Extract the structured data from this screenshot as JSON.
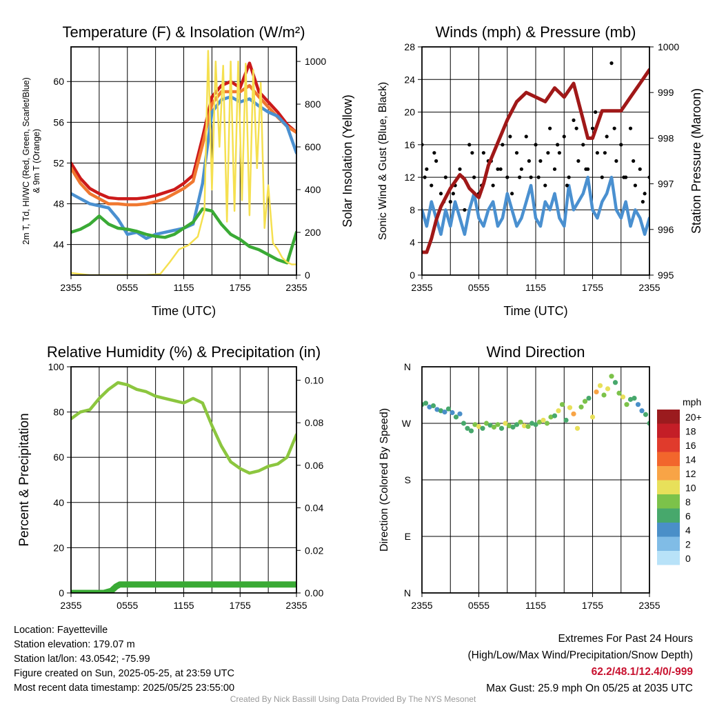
{
  "footer": {
    "location": "Location: Fayetteville",
    "elevation": "Station elevation: 179.07 m",
    "latlon": "Station lat/lon: 43.0542; -75.99",
    "created": "Figure created on Sun, 2025-05-25, at 23:59 UTC",
    "recent": "Most recent data timestamp: 2025/05/25 23:55:00",
    "extremes_title": "Extremes For Past 24 Hours",
    "extremes_sub": "(High/Low/Max Wind/Precipitation/Snow Depth)",
    "extremes_values": "62.2/48.1/12.4/0/-999",
    "max_gust": "Max Gust: 25.9 mph On 05/25 at 2035 UTC",
    "credit": "Created By Nick Bassill Using Data Provided By The NYS Mesonet"
  },
  "chart_data": [
    {
      "type": "line",
      "title": "Temperature (F) & Insolation (W/m²)",
      "xlabel": "Time (UTC)",
      "ylabel": [
        "2m T, Td, HI/WC (Red, Green, Scarlet/Blue)",
        "& 9m T (Orange)"
      ],
      "ylabel_right": "Solar Insolation (Yellow)",
      "x_tick_labels": [
        "2355",
        "0555",
        "1155",
        "1755",
        "2355"
      ],
      "x_hours": [
        0,
        1,
        2,
        3,
        4,
        5,
        6,
        7,
        8,
        9,
        10,
        11,
        12,
        13,
        14,
        15,
        16,
        17,
        18,
        19,
        20,
        21,
        22,
        23,
        24
      ],
      "ylim": [
        41,
        63.4
      ],
      "yticks": [
        44,
        48,
        52,
        56,
        60
      ],
      "ylim_right": [
        0,
        1068
      ],
      "yticks_right": [
        0,
        200,
        400,
        600,
        800,
        1000
      ],
      "series": [
        {
          "name": "2m T",
          "color": "#cc1a1a",
          "axis": "left",
          "values": [
            52,
            50.5,
            49.5,
            49,
            48.6,
            48.5,
            48.5,
            48.5,
            48.6,
            48.8,
            49.1,
            49.4,
            50,
            50.8,
            54.5,
            58.5,
            59.6,
            60,
            59.4,
            61.8,
            59,
            58,
            57,
            55.8,
            55
          ]
        },
        {
          "name": "9m T",
          "color": "#f07830",
          "axis": "left",
          "values": [
            51.5,
            50,
            49,
            48.5,
            48,
            48,
            47.9,
            47.9,
            48,
            48.2,
            48.5,
            49,
            49.5,
            50.2,
            53.8,
            57.8,
            59,
            59,
            59,
            59.6,
            58.5,
            57.5,
            56.5,
            55.6,
            55
          ]
        },
        {
          "name": "Dewpoint",
          "color": "#4a90d0",
          "axis": "left",
          "values": [
            49,
            48.5,
            48,
            47.8,
            47.6,
            46.5,
            45,
            45.2,
            44.6,
            45,
            45.2,
            45.4,
            45.6,
            46,
            50,
            57,
            58.2,
            58.5,
            58,
            58.3,
            57.6,
            57,
            56.6,
            55.6,
            53
          ]
        },
        {
          "name": "HI/WC",
          "color": "#3aaa35",
          "axis": "left",
          "values": [
            45.2,
            45.5,
            46,
            46.8,
            46,
            45.6,
            45.5,
            45.3,
            45,
            44.8,
            44.7,
            45,
            45.6,
            46.2,
            47.5,
            47.3,
            46,
            45,
            44.5,
            43.8,
            43.5,
            43,
            42.5,
            42.2,
            45.2
          ]
        },
        {
          "name": "Insolation",
          "color": "#f5e050",
          "axis": "right",
          "x_hours": [
            0,
            2,
            4,
            6,
            8,
            9.5,
            10.5,
            11.5,
            12.5,
            13.5,
            14.2,
            14.6,
            15,
            15.4,
            15.8,
            16.2,
            16.6,
            17,
            17.4,
            17.8,
            18.2,
            18.6,
            19,
            19.4,
            19.8,
            20.2,
            20.6,
            21,
            21.5,
            22,
            22.5,
            23,
            23.5,
            24
          ],
          "values": [
            10,
            0,
            0,
            0,
            0,
            5,
            60,
            120,
            140,
            180,
            300,
            1050,
            400,
            1000,
            600,
            980,
            250,
            1000,
            300,
            1000,
            350,
            990,
            280,
            960,
            500,
            900,
            220,
            420,
            150,
            120,
            80,
            60,
            50,
            50
          ]
        }
      ]
    },
    {
      "type": "line",
      "title": "Winds (mph) & Pressure (mb)",
      "xlabel": "Time (UTC)",
      "ylabel": "Sonic Wind & Gust (Blue, Black)",
      "ylabel_right": "Station Pressure (Maroon)",
      "x_tick_labels": [
        "2355",
        "0555",
        "1155",
        "1755",
        "2355"
      ],
      "ylim": [
        0,
        28
      ],
      "yticks": [
        0,
        4,
        8,
        12,
        16,
        20,
        24,
        28
      ],
      "ylim_right": [
        995,
        1000
      ],
      "yticks_right": [
        995,
        996,
        997,
        998,
        999,
        1000
      ],
      "series": [
        {
          "name": "Sonic Wind",
          "color": "#4a90d0",
          "axis": "left",
          "x_hours": [
            0,
            0.5,
            1,
            1.5,
            2,
            2.5,
            3,
            3.5,
            4,
            4.5,
            5,
            5.5,
            6,
            6.5,
            7,
            7.5,
            8,
            8.5,
            9,
            9.5,
            10,
            10.5,
            11,
            11.5,
            12,
            12.5,
            13,
            13.5,
            14,
            14.5,
            15,
            15.5,
            16,
            16.5,
            17,
            17.5,
            18,
            18.5,
            19,
            19.5,
            20,
            20.5,
            21,
            21.5,
            22,
            22.5,
            23,
            23.5,
            24
          ],
          "values": [
            8,
            6,
            9,
            7,
            5,
            8,
            6,
            9,
            7,
            5,
            8,
            10,
            7,
            6,
            8,
            9,
            6,
            7,
            10,
            8,
            6,
            7,
            9,
            11,
            7,
            6,
            9,
            8,
            10,
            7,
            6,
            11,
            8,
            9,
            10,
            12,
            8,
            7,
            9,
            10,
            12,
            8,
            7,
            9,
            6,
            8,
            7,
            5,
            7
          ]
        },
        {
          "name": "Gust",
          "color": "#000000",
          "axis": "left",
          "style": "dots",
          "x_hours": [
            0,
            0.5,
            1,
            1.5,
            2,
            2.5,
            3,
            3.5,
            4,
            4.5,
            5,
            5.5,
            6,
            6.5,
            7,
            7.5,
            8,
            8.5,
            9,
            9.5,
            10,
            10.5,
            11,
            11.5,
            12,
            12.5,
            13,
            13.5,
            14,
            14.5,
            15,
            15.5,
            16,
            16.5,
            17,
            17.5,
            18,
            18.5,
            19,
            19.5,
            20,
            20.5,
            21,
            21.5,
            22,
            22.5,
            23,
            23.5,
            24,
            0.3,
            1.3,
            2.3,
            3.3,
            4.3,
            5.3,
            6.3,
            7.3,
            8.3,
            9.3,
            10.3,
            11.3,
            12.3,
            13.3,
            14.3,
            15.3,
            16.3,
            17.3,
            18.3,
            19.3,
            20.3,
            21.3,
            22.3,
            23.3
          ],
          "values": [
            16,
            13,
            11,
            14,
            10,
            12,
            9,
            11,
            13,
            8,
            16,
            12,
            10,
            15,
            14,
            11,
            13,
            16,
            12,
            10,
            15,
            13,
            17,
            12,
            16,
            14,
            11,
            18,
            13,
            15,
            17,
            12,
            19,
            14,
            16,
            13,
            18,
            15,
            12,
            17,
            26,
            14,
            16,
            12,
            18,
            11,
            13,
            10,
            12,
            12,
            15,
            9,
            10,
            12,
            15,
            11,
            14,
            13,
            17,
            12,
            14,
            12,
            15,
            16,
            11,
            18,
            13,
            20,
            15,
            18,
            12,
            14,
            9
          ]
        },
        {
          "name": "Pressure",
          "color": "#a01818",
          "axis": "right",
          "x_hours": [
            0,
            0.5,
            1,
            1.5,
            2,
            3,
            4,
            4.5,
            5,
            5.5,
            6,
            6.5,
            7,
            8,
            9,
            9.5,
            10,
            11,
            12,
            13,
            14,
            15,
            16,
            17,
            17.5,
            18,
            18.5,
            19,
            20,
            21,
            22,
            23,
            24
          ],
          "values": [
            995.5,
            995.5,
            995.8,
            996.2,
            996.5,
            996.9,
            997.2,
            997.1,
            996.9,
            996.8,
            996.7,
            997,
            997.4,
            997.9,
            998.4,
            998.6,
            998.8,
            999,
            998.9,
            998.8,
            999.1,
            998.9,
            999.2,
            998.4,
            998,
            998,
            998.3,
            998.6,
            998.6,
            998.6,
            998.9,
            999.2,
            999.5
          ]
        }
      ]
    },
    {
      "type": "line",
      "title": "Relative Humidity (%) & Precipitation (in)",
      "xlabel": "",
      "ylabel": "Percent & Precipitation",
      "x_tick_labels": [
        "2355",
        "0555",
        "1155",
        "1755",
        "2355"
      ],
      "ylim": [
        0,
        100
      ],
      "yticks": [
        0,
        20,
        40,
        60,
        80,
        100
      ],
      "ylim_right": [
        0,
        0.1063
      ],
      "yticks_right": [
        "0.00",
        "0.02",
        "0.04",
        "0.06",
        "0.08",
        "0.10"
      ],
      "series": [
        {
          "name": "Relative Humidity",
          "color": "#8cc63f",
          "axis": "left",
          "values": [
            77,
            80,
            81,
            86,
            90,
            93,
            92,
            90,
            89,
            87,
            86,
            85,
            84,
            86,
            84,
            74,
            65,
            58,
            55,
            53,
            54,
            56,
            57,
            60,
            70
          ]
        },
        {
          "name": "Precipitation",
          "color": "#3aaa35",
          "axis": "right",
          "x_hours": [
            0,
            3.5,
            4.3,
            4.8,
            5.2,
            24
          ],
          "values": [
            0,
            0,
            0.001,
            0.003,
            0.004,
            0.004
          ]
        }
      ]
    },
    {
      "type": "scatter",
      "title": "Wind Direction",
      "ylabel": "Direction (Colored By Speed)",
      "x_tick_labels": [
        "2355",
        "0555",
        "1155",
        "1755",
        "2355"
      ],
      "y_tick_labels": [
        "N",
        "E",
        "S",
        "W",
        "N"
      ],
      "ylim": [
        0,
        360
      ],
      "legend": {
        "title": "mph",
        "placement": "right",
        "labels": [
          "20+",
          "18",
          "16",
          "14",
          "12",
          "10",
          "8",
          "6",
          "4",
          "2",
          "0"
        ],
        "colors": [
          "#9b1b1e",
          "#c41e27",
          "#e03b2c",
          "#f2662c",
          "#f8a446",
          "#e8e05a",
          "#7cc24a",
          "#47a86c",
          "#4a8fc8",
          "#80bce6",
          "#b8e2f8"
        ]
      },
      "x_hours": [
        0,
        0.4,
        0.8,
        1.2,
        1.6,
        2,
        2.4,
        2.8,
        3.2,
        3.6,
        4,
        4.4,
        4.8,
        5.2,
        5.6,
        6,
        6.4,
        6.8,
        7.2,
        7.6,
        8,
        8.4,
        8.8,
        9.2,
        9.6,
        10,
        10.4,
        10.8,
        11.2,
        11.6,
        12,
        12.4,
        12.8,
        13.2,
        13.6,
        14,
        14.4,
        14.8,
        15.2,
        15.6,
        16,
        16.4,
        16.8,
        17.2,
        17.6,
        18,
        18.4,
        18.8,
        19.2,
        19.6,
        20,
        20.4,
        20.8,
        21.2,
        21.6,
        22,
        22.4,
        22.8,
        23.2,
        23.6,
        24
      ],
      "directions": [
        300,
        302,
        296,
        298,
        292,
        290,
        288,
        293,
        287,
        280,
        285,
        270,
        262,
        258,
        268,
        265,
        262,
        270,
        267,
        264,
        268,
        262,
        270,
        266,
        264,
        268,
        272,
        266,
        265,
        270,
        268,
        272,
        275,
        270,
        280,
        282,
        290,
        300,
        275,
        295,
        285,
        262,
        296,
        305,
        310,
        280,
        320,
        330,
        315,
        325,
        345,
        335,
        318,
        312,
        300,
        308,
        310,
        300,
        290,
        284,
        270
      ],
      "speeds": [
        6,
        7,
        5,
        6,
        4,
        6,
        5,
        6,
        4,
        6,
        5,
        7,
        6,
        7,
        8,
        10,
        7,
        9,
        6,
        8,
        9,
        7,
        10,
        8,
        6,
        7,
        9,
        11,
        8,
        6,
        7,
        9,
        10,
        8,
        9,
        7,
        10,
        8,
        6,
        11,
        12,
        10,
        9,
        8,
        7,
        10,
        12,
        11,
        9,
        10,
        9,
        7,
        8,
        10,
        8,
        7,
        6,
        5,
        4,
        7,
        6
      ]
    }
  ]
}
